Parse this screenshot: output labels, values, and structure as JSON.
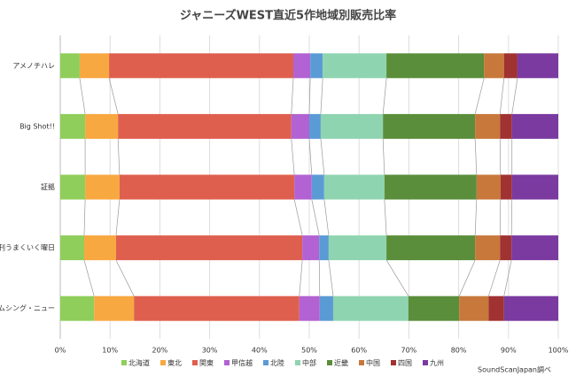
{
  "chart_data": {
    "type": "stacked_bar_horizontal_100",
    "title": "ジャニーズWEST直近5作地域別販売比率",
    "source": "SoundScanJapan調べ",
    "categories": [
      "アメノチハレ",
      "Big Shot!!",
      "証拠",
      "週刊うまくいく曜日",
      "サムシング・ニュー"
    ],
    "series": [
      {
        "name": "北海道",
        "color": "#8fce5a",
        "values": [
          3.9,
          5.0,
          5.0,
          4.8,
          6.8
        ]
      },
      {
        "name": "東北",
        "color": "#f8a840",
        "values": [
          5.9,
          6.6,
          6.9,
          6.4,
          8.0
        ]
      },
      {
        "name": "関東",
        "color": "#df5f4e",
        "values": [
          37.0,
          34.8,
          35.1,
          37.4,
          33.2
        ]
      },
      {
        "name": "甲信越",
        "color": "#b262d2",
        "values": [
          3.4,
          3.6,
          3.5,
          3.4,
          4.1
        ]
      },
      {
        "name": "北陸",
        "color": "#5b9bd5",
        "values": [
          2.5,
          2.3,
          2.5,
          1.9,
          2.7
        ]
      },
      {
        "name": "中部",
        "color": "#8fd4b0",
        "values": [
          12.8,
          12.5,
          12.1,
          11.6,
          15.1
        ]
      },
      {
        "name": "近畿",
        "color": "#5a8e3a",
        "values": [
          19.6,
          18.5,
          18.5,
          17.8,
          10.2
        ]
      },
      {
        "name": "中国",
        "color": "#c8783a",
        "values": [
          4.0,
          5.0,
          4.8,
          5.0,
          5.9
        ]
      },
      {
        "name": "四国",
        "color": "#a03232",
        "values": [
          2.7,
          2.4,
          2.3,
          2.3,
          3.1
        ]
      },
      {
        "name": "九州",
        "color": "#7a3aa0",
        "values": [
          8.2,
          9.3,
          9.3,
          9.4,
          10.9
        ]
      }
    ],
    "xlim": [
      0,
      100
    ],
    "xticks": [
      {
        "value": 0,
        "label": "0%"
      },
      {
        "value": 10,
        "label": "10%"
      },
      {
        "value": 20,
        "label": "20%"
      },
      {
        "value": 30,
        "label": "30%"
      },
      {
        "value": 40,
        "label": "40%"
      },
      {
        "value": 50,
        "label": "50%"
      },
      {
        "value": 60,
        "label": "60%"
      },
      {
        "value": 70,
        "label": "70%"
      },
      {
        "value": 80,
        "label": "80%"
      },
      {
        "value": 90,
        "label": "90%"
      },
      {
        "value": 100,
        "label": "100%"
      }
    ],
    "grid": true
  }
}
